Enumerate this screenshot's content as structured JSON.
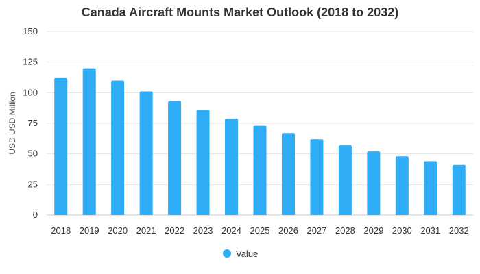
{
  "chart_data": {
    "type": "bar",
    "title": "Canada Aircraft Mounts Market Outlook (2018 to 2032)",
    "xlabel": "",
    "ylabel": "USD USD Million",
    "ylim": [
      0,
      150
    ],
    "yticks": [
      0,
      25,
      50,
      75,
      100,
      125,
      150
    ],
    "grid": true,
    "legend_position": "bottom-center",
    "categories": [
      "2018",
      "2019",
      "2020",
      "2021",
      "2022",
      "2023",
      "2024",
      "2025",
      "2026",
      "2027",
      "2028",
      "2029",
      "2030",
      "2031",
      "2032"
    ],
    "series": [
      {
        "name": "Value",
        "color": "#2eacf6",
        "values": [
          112,
          120,
          110,
          101,
          93,
          86,
          79,
          73,
          67,
          62,
          57,
          52,
          48,
          44,
          41
        ]
      }
    ]
  }
}
